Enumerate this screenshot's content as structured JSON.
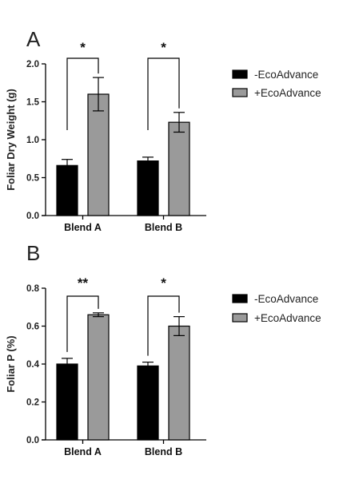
{
  "chart_data": [
    {
      "type": "bar",
      "panel_label": "A",
      "title": "",
      "xlabel": "",
      "ylabel": "Foliar Dry Weight (g)",
      "ylim": [
        0,
        2.0
      ],
      "yticks": [
        0.0,
        0.5,
        1.0,
        1.5,
        2.0
      ],
      "ytick_labels": [
        "0.0",
        "0.5",
        "1.0",
        "1.5",
        "2.0"
      ],
      "categories": [
        "Blend A",
        "Blend B"
      ],
      "series": [
        {
          "name": "-EcoAdvance",
          "color": "#000000",
          "values": [
            0.66,
            0.72
          ],
          "errors": [
            0.08,
            0.05
          ]
        },
        {
          "name": "+EcoAdvance",
          "color": "#9a9a9a",
          "values": [
            1.6,
            1.23
          ],
          "errors": [
            0.22,
            0.13
          ]
        }
      ],
      "significance": [
        "*",
        "*"
      ],
      "legend_position": "right",
      "grid": false
    },
    {
      "type": "bar",
      "panel_label": "B",
      "title": "",
      "xlabel": "",
      "ylabel": "Foliar P  (%)",
      "ylim": [
        0,
        0.8
      ],
      "yticks": [
        0.0,
        0.2,
        0.4,
        0.6,
        0.8
      ],
      "ytick_labels": [
        "0.0",
        "0.2",
        "0.4",
        "0.6",
        "0.8"
      ],
      "categories": [
        "Blend A",
        "Blend B"
      ],
      "series": [
        {
          "name": "-EcoAdvance",
          "color": "#000000",
          "values": [
            0.4,
            0.39
          ],
          "errors": [
            0.03,
            0.02
          ]
        },
        {
          "name": "+EcoAdvance",
          "color": "#9a9a9a",
          "values": [
            0.66,
            0.6
          ],
          "errors": [
            0.01,
            0.05
          ]
        }
      ],
      "significance": [
        "**",
        "*"
      ],
      "legend_position": "right",
      "grid": false
    }
  ]
}
